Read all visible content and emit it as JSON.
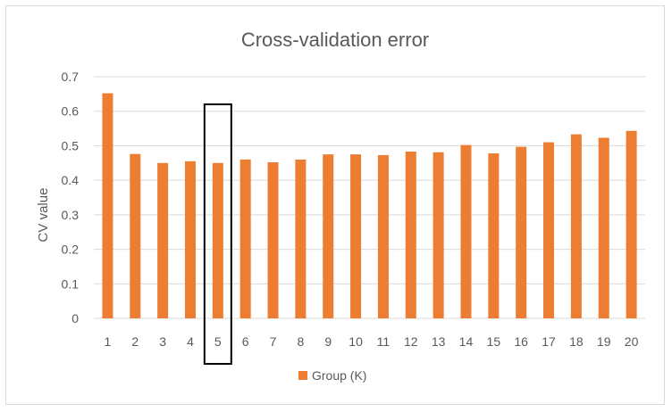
{
  "chart_data": {
    "type": "bar",
    "title": "Cross-validation error",
    "xlabel": "",
    "ylabel": "CV value",
    "categories": [
      "1",
      "2",
      "3",
      "4",
      "5",
      "6",
      "7",
      "8",
      "9",
      "10",
      "11",
      "12",
      "13",
      "14",
      "15",
      "16",
      "17",
      "18",
      "19",
      "20"
    ],
    "series": [
      {
        "name": "Group (K)",
        "values": [
          0.652,
          0.476,
          0.45,
          0.455,
          0.45,
          0.46,
          0.452,
          0.46,
          0.475,
          0.475,
          0.473,
          0.483,
          0.481,
          0.502,
          0.478,
          0.497,
          0.51,
          0.533,
          0.523,
          0.543
        ]
      }
    ],
    "ylim": [
      0,
      0.7
    ],
    "y_ticks": [
      "0",
      "0.1",
      "0.2",
      "0.3",
      "0.4",
      "0.5",
      "0.6",
      "0.7"
    ],
    "grid": "horizontal",
    "legend_position": "bottom",
    "highlighted_category": "5",
    "colors": {
      "bar": "#ED7D31",
      "grid": "#d9d9d9",
      "text": "#595959",
      "highlight_box": "#000000"
    }
  }
}
